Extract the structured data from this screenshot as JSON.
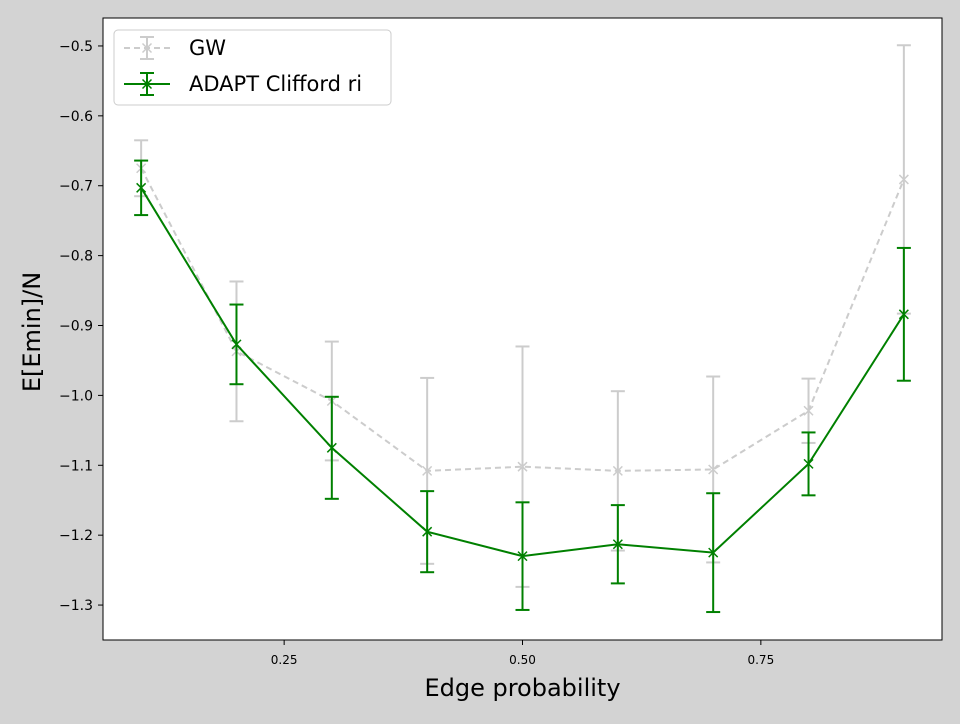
{
  "chart_data": {
    "type": "line",
    "title": "",
    "xlabel": "Edge probability",
    "ylabel": "E[Emin]/N",
    "xlim": [
      0.06,
      0.94
    ],
    "ylim": [
      -1.35,
      -0.46
    ],
    "xticks": [
      0.25,
      0.5,
      0.75
    ],
    "xtick_labels": [
      "0.25",
      "0.50",
      "0.75"
    ],
    "yticks": [
      -1.3,
      -1.2,
      -1.1,
      -1.0,
      -0.9,
      -0.8,
      -0.7,
      -0.6,
      -0.5
    ],
    "ytick_labels": [
      "−1.3",
      "−1.2",
      "−1.1",
      "−1.0",
      "−0.9",
      "−0.8",
      "−0.7",
      "−0.6",
      "−0.5"
    ],
    "grid": false,
    "legend_location": "upper left",
    "series": [
      {
        "name": "GW",
        "color": "#cccccc",
        "linestyle": "dashed",
        "marker": "x",
        "x": [
          0.1,
          0.2,
          0.3,
          0.4,
          0.5,
          0.6,
          0.7,
          0.8,
          0.9
        ],
        "y": [
          -0.675,
          -0.937,
          -1.008,
          -1.108,
          -1.102,
          -1.108,
          -1.106,
          -1.022,
          -0.691
        ],
        "yerr": [
          0.04,
          0.1,
          0.085,
          0.133,
          0.172,
          0.114,
          0.133,
          0.046,
          0.192
        ]
      },
      {
        "name": "ADAPT Clifford ri",
        "color": "#008000",
        "linestyle": "solid",
        "marker": "x",
        "x": [
          0.1,
          0.2,
          0.3,
          0.4,
          0.5,
          0.6,
          0.7,
          0.8,
          0.9
        ],
        "y": [
          -0.703,
          -0.927,
          -1.075,
          -1.195,
          -1.23,
          -1.213,
          -1.225,
          -1.098,
          -0.884
        ],
        "yerr": [
          0.039,
          0.057,
          0.073,
          0.058,
          0.077,
          0.056,
          0.085,
          0.045,
          0.095
        ]
      }
    ]
  }
}
